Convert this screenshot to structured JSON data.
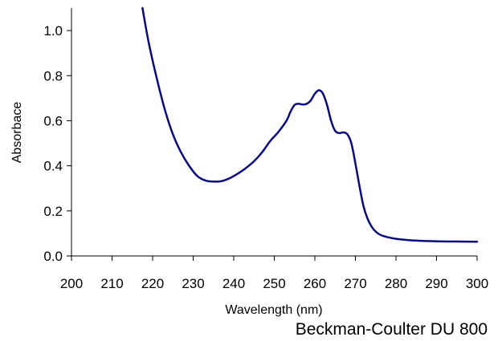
{
  "chart_data": {
    "type": "line",
    "title": "",
    "xlabel": "Wavelength (nm)",
    "ylabel": "Absorbace",
    "annotation": "Beckman-Coulter DU 800",
    "xlim": [
      200,
      300
    ],
    "ylim": [
      0.0,
      1.1
    ],
    "x_ticks": [
      200,
      210,
      220,
      230,
      240,
      250,
      260,
      270,
      280,
      290,
      300
    ],
    "x_tick_labels": [
      "200",
      "210",
      "220",
      "230",
      "240",
      "250",
      "260",
      "270",
      "280",
      "290",
      "300"
    ],
    "y_ticks": [
      0.0,
      0.2,
      0.4,
      0.6,
      0.8,
      1.0
    ],
    "y_tick_labels": [
      "0.0",
      "0.2",
      "0.4",
      "0.6",
      "0.8",
      "1.0"
    ],
    "grid": false,
    "line_color": "#0a0a80",
    "series": [
      {
        "x": [
          217.5,
          219,
          221,
          223,
          225,
          227,
          229,
          231,
          233,
          235,
          237,
          239,
          241,
          243,
          245,
          247,
          249,
          251,
          253,
          254,
          255,
          256,
          257,
          258,
          259,
          260,
          261,
          262,
          263,
          264,
          265,
          266,
          267,
          268,
          269,
          270,
          271,
          272,
          273,
          274,
          275,
          276,
          277,
          278,
          280,
          282,
          285,
          290,
          295,
          300
        ],
        "y": [
          1.1,
          0.95,
          0.79,
          0.65,
          0.54,
          0.46,
          0.4,
          0.355,
          0.335,
          0.33,
          0.332,
          0.345,
          0.365,
          0.39,
          0.42,
          0.46,
          0.51,
          0.55,
          0.6,
          0.64,
          0.67,
          0.675,
          0.672,
          0.675,
          0.69,
          0.72,
          0.735,
          0.72,
          0.67,
          0.6,
          0.555,
          0.545,
          0.548,
          0.54,
          0.5,
          0.41,
          0.31,
          0.22,
          0.165,
          0.13,
          0.108,
          0.095,
          0.088,
          0.083,
          0.076,
          0.072,
          0.068,
          0.065,
          0.064,
          0.063
        ]
      }
    ]
  }
}
